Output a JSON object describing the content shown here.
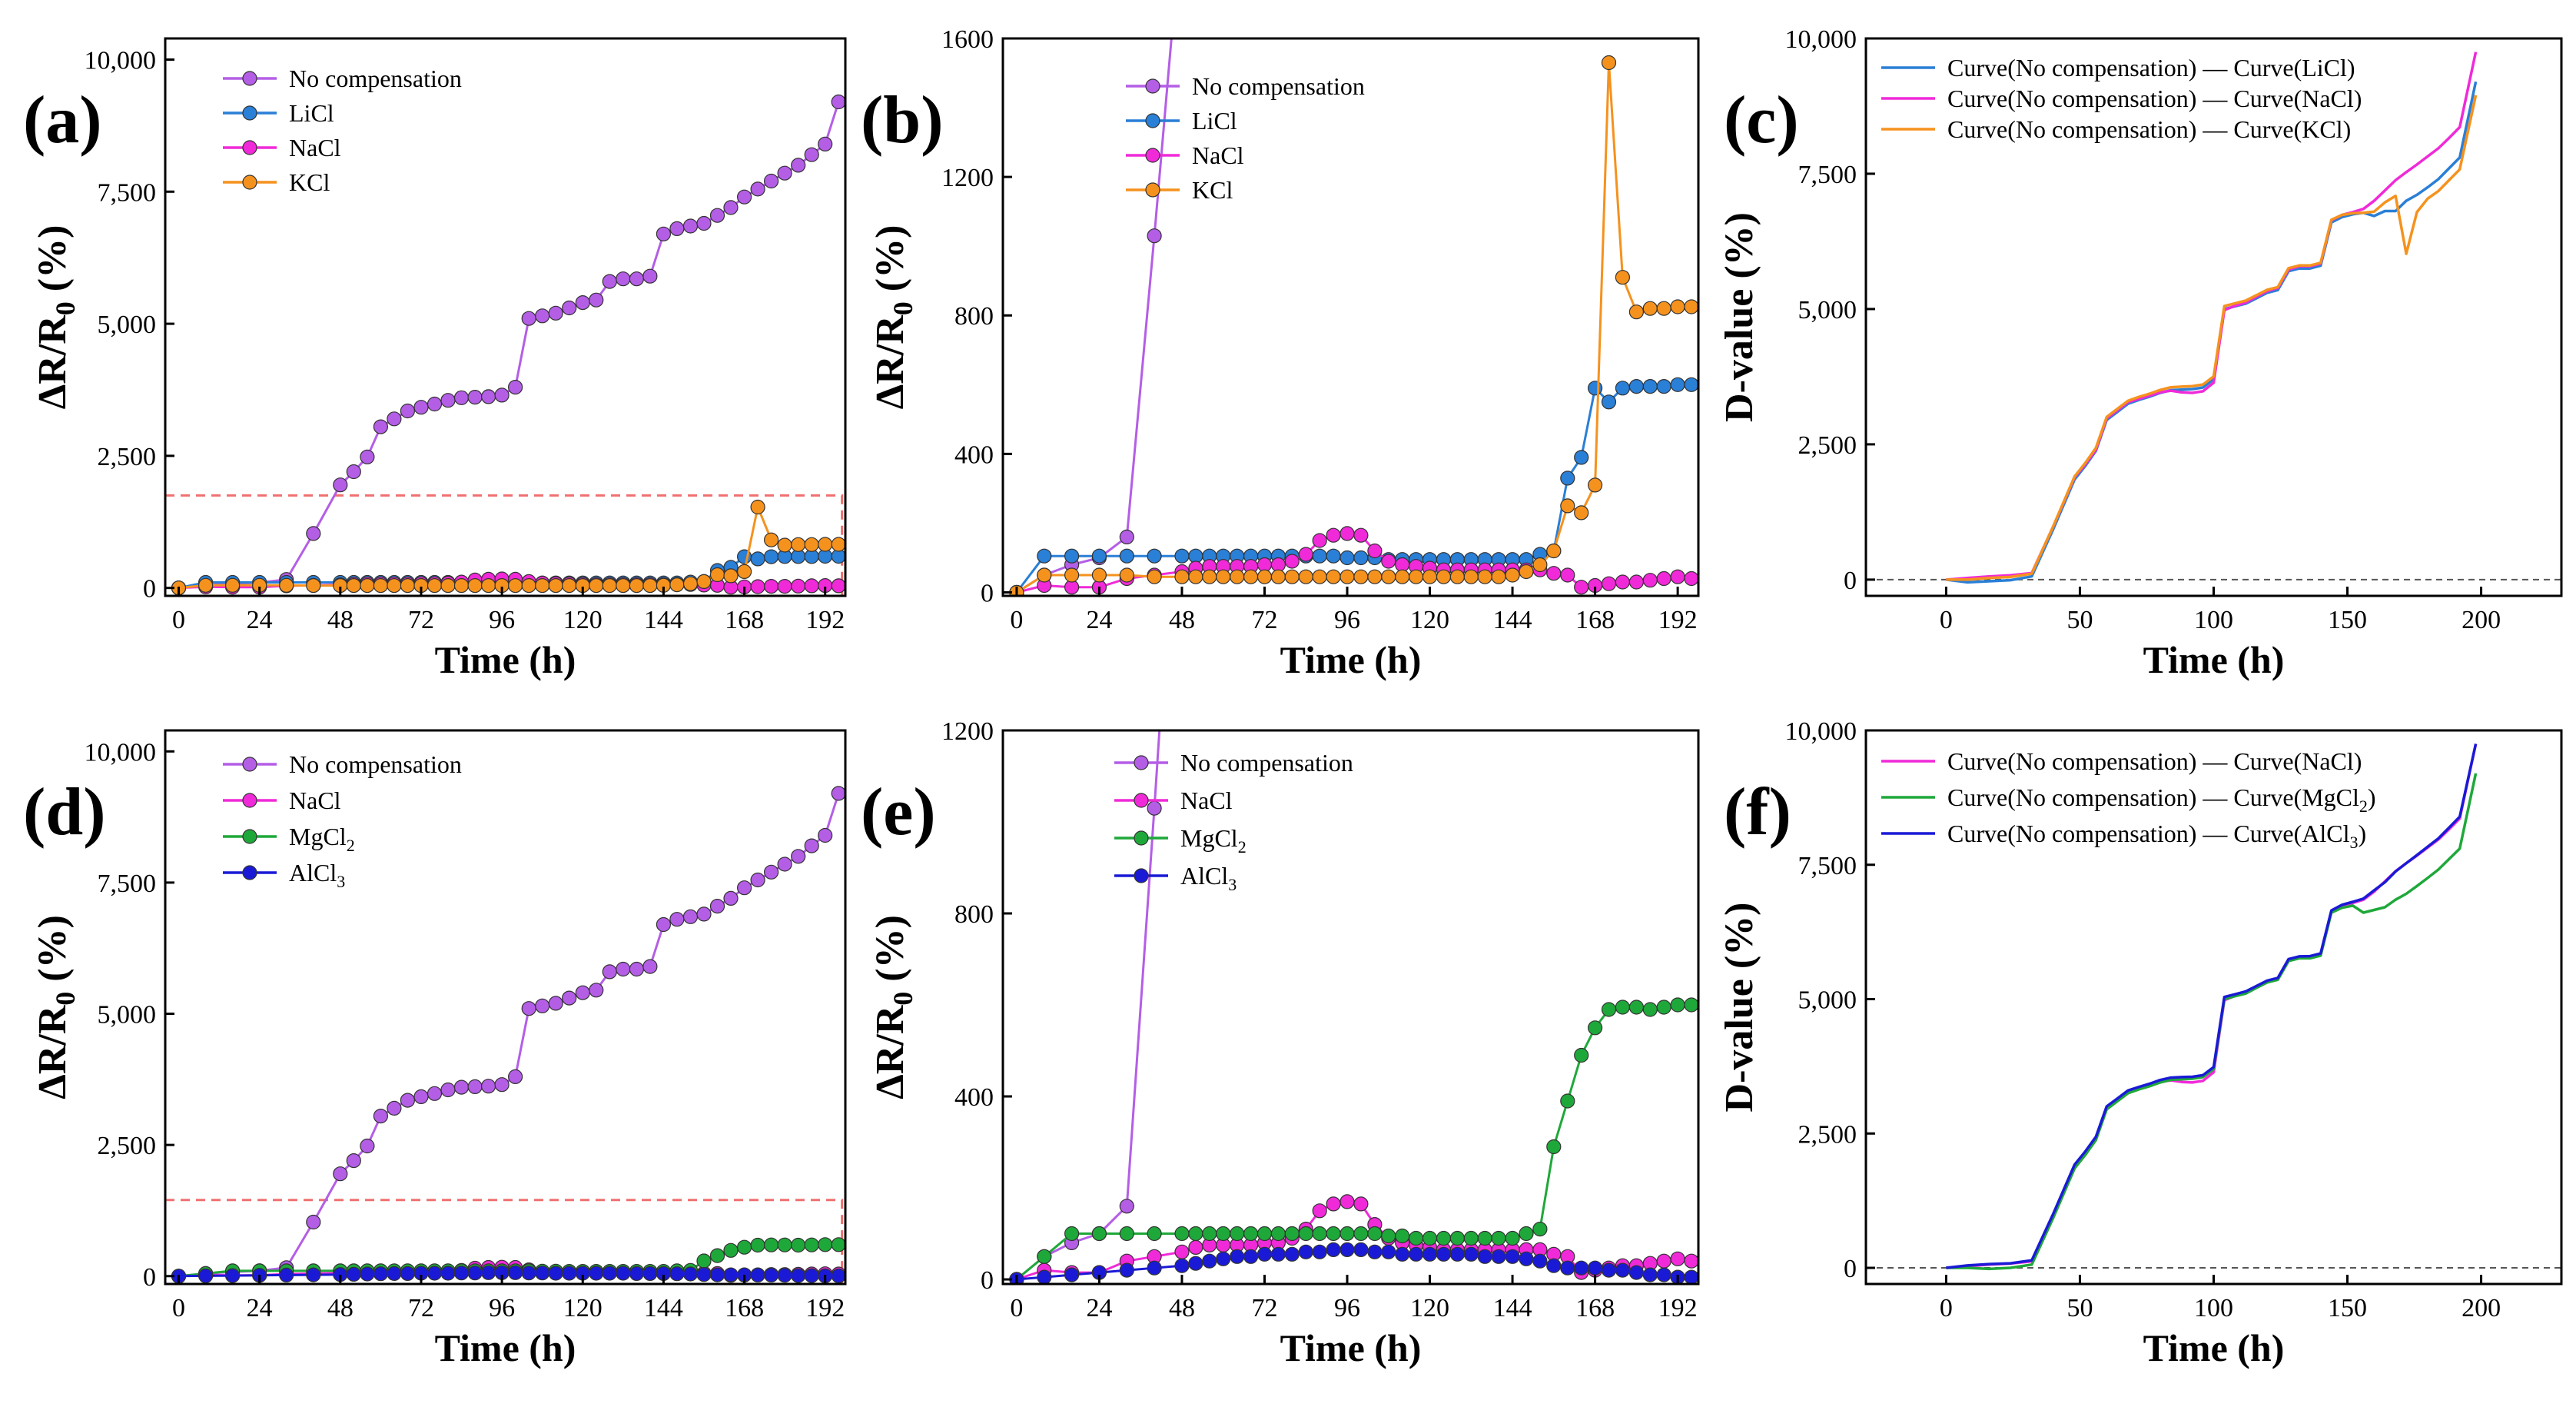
{
  "chart_data": [
    {
      "id": "a",
      "panel_label": "(a)",
      "type": "line",
      "xlabel": "Time (h)",
      "ylabel_main": "ΔR/R",
      "ylabel_sub": "0",
      "ylabel_tail": " (%)",
      "xlim": [
        -4,
        198
      ],
      "ylim": [
        -150,
        10400
      ],
      "xticks": [
        0,
        24,
        48,
        72,
        96,
        120,
        144,
        168,
        192
      ],
      "yticks": [
        0,
        2500,
        5000,
        7500,
        10000
      ],
      "ytick_labels": [
        "0",
        "2,500",
        "5,000",
        "7,500",
        "10,000"
      ],
      "legend_position": "top-left",
      "highlight_box": {
        "x0": -4,
        "x1": 197,
        "y0": -150,
        "y1": 1750,
        "color": "#f07070"
      },
      "series": [
        {
          "name": "No compensation",
          "legend": "No compensation",
          "color": "#b45ee6",
          "marker": true,
          "ref": "nocomp"
        },
        {
          "name": "LiCl",
          "legend": "LiCl",
          "color": "#2a7fd6",
          "marker": true,
          "ref": "licl"
        },
        {
          "name": "NaCl",
          "legend": "NaCl",
          "color": "#f02ad8",
          "marker": true,
          "ref": "nacl"
        },
        {
          "name": "KCl",
          "legend": "KCl",
          "color": "#f5921e",
          "marker": true,
          "ref": "kcl"
        }
      ]
    },
    {
      "id": "b",
      "panel_label": "(b)",
      "type": "line",
      "xlabel": "Time (h)",
      "ylabel_main": "ΔR/R",
      "ylabel_sub": "0",
      "ylabel_tail": " (%)",
      "xlim": [
        -4,
        198
      ],
      "ylim": [
        -10,
        1600
      ],
      "xticks": [
        0,
        24,
        48,
        72,
        96,
        120,
        144,
        168,
        192
      ],
      "yticks": [
        0,
        400,
        800,
        1200,
        1600
      ],
      "ytick_labels": [
        "0",
        "400",
        "800",
        "1200",
        "1600"
      ],
      "legend_position": "top-center",
      "series": [
        {
          "name": "No compensation",
          "legend": "No compensation",
          "color": "#b45ee6",
          "marker": true,
          "ref": "nocomp"
        },
        {
          "name": "LiCl",
          "legend": "LiCl",
          "color": "#2a7fd6",
          "marker": true,
          "ref": "licl"
        },
        {
          "name": "NaCl",
          "legend": "NaCl",
          "color": "#f02ad8",
          "marker": true,
          "ref": "nacl"
        },
        {
          "name": "KCl",
          "legend": "KCl",
          "color": "#f5921e",
          "marker": true,
          "ref": "kcl"
        }
      ]
    },
    {
      "id": "c",
      "panel_label": "(c)",
      "type": "line",
      "xlabel": "Time (h)",
      "ylabel_main": "D-value (%)",
      "xlim": [
        -30,
        230
      ],
      "ylim": [
        -300,
        10000
      ],
      "xticks": [
        0,
        50,
        100,
        150,
        200
      ],
      "yticks": [
        0,
        2500,
        5000,
        7500,
        10000
      ],
      "ytick_labels": [
        "0",
        "2,500",
        "5,000",
        "7,500",
        "10,000"
      ],
      "zero_line": true,
      "legend_position": "top-left",
      "series": [
        {
          "name": "Curve(No compensation) — Curve(LiCl)",
          "legend_parts": [
            "Curve(No compensation) — Curve(LiCl)"
          ],
          "color": "#2a7fd6",
          "marker": false,
          "ref": "d_licl"
        },
        {
          "name": "Curve(No compensation) — Curve(NaCl)",
          "legend_parts": [
            "Curve(No compensation) — Curve(NaCl)"
          ],
          "color": "#f02ad8",
          "marker": false,
          "ref": "d_nacl"
        },
        {
          "name": "Curve(No compensation) — Curve(KCl)",
          "legend_parts": [
            "Curve(No compensation) — Curve(KCl)"
          ],
          "color": "#f5921e",
          "marker": false,
          "ref": "d_kcl"
        }
      ]
    },
    {
      "id": "d",
      "panel_label": "(d)",
      "type": "line",
      "xlabel": "Time (h)",
      "ylabel_main": "ΔR/R",
      "ylabel_sub": "0",
      "ylabel_tail": " (%)",
      "xlim": [
        -4,
        198
      ],
      "ylim": [
        -150,
        10400
      ],
      "xticks": [
        0,
        24,
        48,
        72,
        96,
        120,
        144,
        168,
        192
      ],
      "yticks": [
        0,
        2500,
        5000,
        7500,
        10000
      ],
      "ytick_labels": [
        "0",
        "2,500",
        "5,000",
        "7,500",
        "10,000"
      ],
      "legend_position": "top-left",
      "highlight_box": {
        "x0": -4,
        "x1": 197,
        "y0": -150,
        "y1": 1450,
        "color": "#f07070"
      },
      "series": [
        {
          "name": "No compensation",
          "legend_parts": [
            "No compensation"
          ],
          "color": "#b45ee6",
          "marker": true,
          "ref": "nocomp"
        },
        {
          "name": "NaCl",
          "legend_parts": [
            "NaCl"
          ],
          "color": "#f02ad8",
          "marker": true,
          "ref": "nacl"
        },
        {
          "name": "MgCl2",
          "legend_parts": [
            "MgCl",
            "2",
            ""
          ],
          "color": "#1fa83a",
          "marker": true,
          "ref": "mgcl2"
        },
        {
          "name": "AlCl3",
          "legend_parts": [
            "AlCl",
            "3",
            ""
          ],
          "color": "#1a1ad6",
          "marker": true,
          "ref": "alcl3"
        }
      ]
    },
    {
      "id": "e",
      "panel_label": "(e)",
      "type": "line",
      "xlabel": "Time (h)",
      "ylabel_main": "ΔR/R",
      "ylabel_sub": "0",
      "ylabel_tail": " (%)",
      "xlim": [
        -4,
        198
      ],
      "ylim": [
        -10,
        1200
      ],
      "xticks": [
        0,
        24,
        48,
        72,
        96,
        120,
        144,
        168,
        192
      ],
      "yticks": [
        0,
        400,
        800,
        1200
      ],
      "ytick_labels": [
        "0",
        "400",
        "800",
        "1200"
      ],
      "legend_position": "top-center",
      "series": [
        {
          "name": "No compensation",
          "legend_parts": [
            "No compensation"
          ],
          "color": "#b45ee6",
          "marker": true,
          "ref": "nocomp"
        },
        {
          "name": "NaCl",
          "legend_parts": [
            "NaCl"
          ],
          "color": "#f02ad8",
          "marker": true,
          "ref": "nacl"
        },
        {
          "name": "MgCl2",
          "legend_parts": [
            "MgCl",
            "2",
            ""
          ],
          "color": "#1fa83a",
          "marker": true,
          "ref": "mgcl2"
        },
        {
          "name": "AlCl3",
          "legend_parts": [
            "AlCl",
            "3",
            ""
          ],
          "color": "#1a1ad6",
          "marker": true,
          "ref": "alcl3"
        }
      ]
    },
    {
      "id": "f",
      "panel_label": "(f)",
      "type": "line",
      "xlabel": "Time (h)",
      "ylabel_main": "D-value (%)",
      "xlim": [
        -30,
        230
      ],
      "ylim": [
        -300,
        10000
      ],
      "xticks": [
        0,
        50,
        100,
        150,
        200
      ],
      "yticks": [
        0,
        2500,
        5000,
        7500,
        10000
      ],
      "ytick_labels": [
        "0",
        "2,500",
        "5,000",
        "7,500",
        "10,000"
      ],
      "zero_line": true,
      "legend_position": "top-left",
      "series": [
        {
          "name": "Curve(No compensation) — Curve(NaCl)",
          "legend_parts": [
            "Curve(No compensation) — Curve(NaCl)"
          ],
          "color": "#f02ad8",
          "marker": false,
          "ref": "d_nacl"
        },
        {
          "name": "Curve(No compensation) — Curve(MgCl2)",
          "legend_parts": [
            "Curve(No compensation) — Curve(MgCl",
            "2",
            ")"
          ],
          "color": "#1fa83a",
          "marker": false,
          "ref": "d_mgcl2"
        },
        {
          "name": "Curve(No compensation) — Curve(AlCl3)",
          "legend_parts": [
            "Curve(No compensation) — Curve(AlCl",
            "3",
            ")"
          ],
          "color": "#1a1ad6",
          "marker": false,
          "ref": "d_alcl3"
        }
      ]
    }
  ],
  "shared_series": {
    "time_h": [
      0,
      8,
      16,
      24,
      32,
      40,
      48,
      52,
      56,
      60,
      64,
      68,
      72,
      76,
      80,
      84,
      88,
      92,
      96,
      100,
      104,
      108,
      112,
      116,
      120,
      124,
      128,
      132,
      136,
      140,
      144,
      148,
      152,
      156,
      160,
      164,
      168,
      172,
      176,
      180,
      184,
      188,
      192,
      196
    ],
    "nocomp": [
      0,
      50,
      80,
      100,
      160,
      1030,
      1950,
      2200,
      2480,
      3050,
      3200,
      3350,
      3420,
      3480,
      3550,
      3600,
      3610,
      3620,
      3650,
      3800,
      5100,
      5150,
      5200,
      5300,
      5400,
      5450,
      5800,
      5850,
      5850,
      5900,
      6700,
      6800,
      6850,
      6900,
      7050,
      7200,
      7400,
      7550,
      7700,
      7850,
      8000,
      8200,
      8400,
      9200
    ],
    "licl": [
      0,
      105,
      105,
      105,
      105,
      105,
      105,
      105,
      105,
      105,
      105,
      105,
      105,
      105,
      105,
      105,
      105,
      105,
      100,
      100,
      100,
      95,
      95,
      95,
      95,
      95,
      95,
      95,
      95,
      95,
      95,
      95,
      110,
      120,
      330,
      390,
      590,
      550,
      590,
      595,
      595,
      595,
      600,
      600
    ],
    "nacl": [
      0,
      20,
      15,
      15,
      40,
      50,
      60,
      70,
      75,
      75,
      75,
      75,
      80,
      80,
      90,
      110,
      150,
      165,
      170,
      165,
      120,
      90,
      80,
      75,
      70,
      65,
      65,
      65,
      65,
      65,
      65,
      65,
      65,
      55,
      50,
      15,
      20,
      25,
      30,
      30,
      35,
      40,
      45,
      40
    ],
    "kcl": [
      0,
      50,
      50,
      50,
      50,
      45,
      45,
      45,
      45,
      45,
      45,
      45,
      45,
      45,
      45,
      45,
      45,
      45,
      45,
      45,
      45,
      45,
      45,
      45,
      45,
      45,
      45,
      45,
      45,
      45,
      50,
      60,
      80,
      120,
      250,
      230,
      310,
      1530,
      910,
      810,
      820,
      820,
      825,
      825
    ],
    "mgcl2": [
      0,
      50,
      100,
      100,
      100,
      100,
      100,
      100,
      100,
      100,
      100,
      100,
      100,
      100,
      100,
      100,
      100,
      100,
      100,
      100,
      100,
      95,
      95,
      90,
      90,
      90,
      90,
      90,
      90,
      90,
      90,
      100,
      110,
      290,
      390,
      490,
      550,
      590,
      595,
      595,
      590,
      595,
      600,
      600
    ],
    "alcl3": [
      0,
      5,
      10,
      15,
      20,
      25,
      30,
      35,
      40,
      45,
      50,
      50,
      55,
      55,
      55,
      60,
      60,
      65,
      65,
      65,
      60,
      60,
      55,
      55,
      55,
      55,
      55,
      55,
      50,
      50,
      50,
      45,
      40,
      30,
      25,
      25,
      25,
      20,
      20,
      15,
      10,
      10,
      5,
      5
    ],
    "d_time": [
      0,
      8,
      16,
      24,
      32,
      40,
      48,
      52,
      56,
      60,
      64,
      68,
      72,
      76,
      80,
      84,
      88,
      92,
      96,
      100,
      104,
      108,
      112,
      116,
      120,
      124,
      128,
      132,
      136,
      140,
      144,
      148,
      152,
      156,
      160,
      164,
      168,
      172,
      176,
      180,
      184,
      188,
      192,
      198
    ],
    "d_licl": [
      0,
      -50,
      -30,
      -10,
      60,
      930,
      1850,
      2100,
      2380,
      2950,
      3100,
      3250,
      3320,
      3380,
      3450,
      3500,
      3510,
      3520,
      3550,
      3700,
      5000,
      5050,
      5100,
      5200,
      5300,
      5350,
      5700,
      5750,
      5750,
      5800,
      6600,
      6700,
      6750,
      6780,
      6720,
      6810,
      6810,
      7000,
      7110,
      7250,
      7400,
      7600,
      7800,
      9200
    ],
    "d_nacl": [
      0,
      30,
      60,
      80,
      120,
      980,
      1890,
      2130,
      2400,
      2980,
      3130,
      3280,
      3340,
      3400,
      3460,
      3490,
      3460,
      3450,
      3480,
      3640,
      4980,
      5060,
      5120,
      5230,
      5330,
      5390,
      5730,
      5790,
      5790,
      5840,
      6640,
      6740,
      6790,
      6850,
      7000,
      7190,
      7380,
      7530,
      7670,
      7820,
      7970,
      8160,
      8360,
      9750
    ],
    "d_kcl": [
      0,
      0,
      30,
      50,
      110,
      985,
      1905,
      2155,
      2435,
      3005,
      3155,
      3305,
      3375,
      3435,
      3505,
      3555,
      3565,
      3575,
      3605,
      3755,
      5055,
      5105,
      5155,
      5255,
      5355,
      5405,
      5755,
      5805,
      5805,
      5855,
      6650,
      6740,
      6770,
      6780,
      6800,
      6970,
      7090,
      6020,
      6790,
      7040,
      7180,
      7380,
      7580,
      8950
    ],
    "d_mgcl2": [
      0,
      0,
      -20,
      0,
      60,
      930,
      1850,
      2100,
      2380,
      2950,
      3100,
      3250,
      3320,
      3380,
      3450,
      3500,
      3510,
      3520,
      3550,
      3700,
      5000,
      5055,
      5105,
      5210,
      5310,
      5360,
      5710,
      5760,
      5760,
      5810,
      6610,
      6700,
      6740,
      6610,
      6660,
      6710,
      6850,
      6960,
      7105,
      7255,
      7410,
      7605,
      7800,
      9200
    ],
    "d_alcl3": [
      0,
      45,
      70,
      85,
      140,
      1005,
      1920,
      2165,
      2440,
      3005,
      3150,
      3300,
      3365,
      3425,
      3495,
      3540,
      3550,
      3555,
      3585,
      3735,
      5040,
      5090,
      5145,
      5245,
      5345,
      5395,
      5745,
      5795,
      5800,
      5850,
      6650,
      6755,
      6810,
      6870,
      7025,
      7175,
      7375,
      7530,
      7680,
      7835,
      7990,
      8190,
      8395,
      9750
    ]
  }
}
